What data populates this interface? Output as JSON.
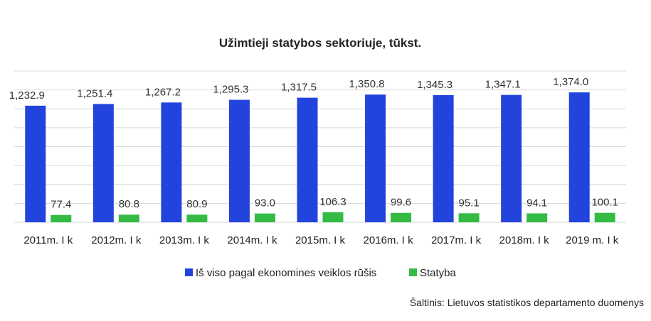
{
  "chart_data": {
    "type": "bar",
    "title": "Užimtieji statybos sektoriuje, tūkst.",
    "categories": [
      "2011m. I k",
      "2012m. I k",
      "2013m. I k",
      "2014m. I k",
      "2015m. I k",
      "2016m. I k",
      "2017m. I k",
      "2018m. I k",
      "2019 m. I k"
    ],
    "series": [
      {
        "name": "Iš viso pagal ekonomines veiklos rūšis",
        "color": "#2244dd",
        "values": [
          1232.9,
          1251.4,
          1267.2,
          1295.3,
          1317.5,
          1350.8,
          1345.3,
          1347.1,
          1374.0
        ],
        "labels": [
          "1,232.9",
          "1,251.4",
          "1,267.2",
          "1,295.3",
          "1,317.5",
          "1,350.8",
          "1,345.3",
          "1,347.1",
          "1,374.0"
        ]
      },
      {
        "name": "Statyba",
        "color": "#33bb44",
        "values": [
          77.4,
          80.8,
          80.9,
          93.0,
          106.3,
          99.6,
          95.1,
          94.1,
          100.1
        ],
        "labels": [
          "77.4",
          "80.8",
          "80.9",
          "93.0",
          "106.3",
          "99.6",
          "95.1",
          "94.1",
          "100.1"
        ]
      }
    ],
    "ylim": [
      0,
      1600
    ],
    "grid": true,
    "legend": "bottom-center"
  },
  "source": "Šaltinis: Lietuvos statistikos departamento duomenys"
}
